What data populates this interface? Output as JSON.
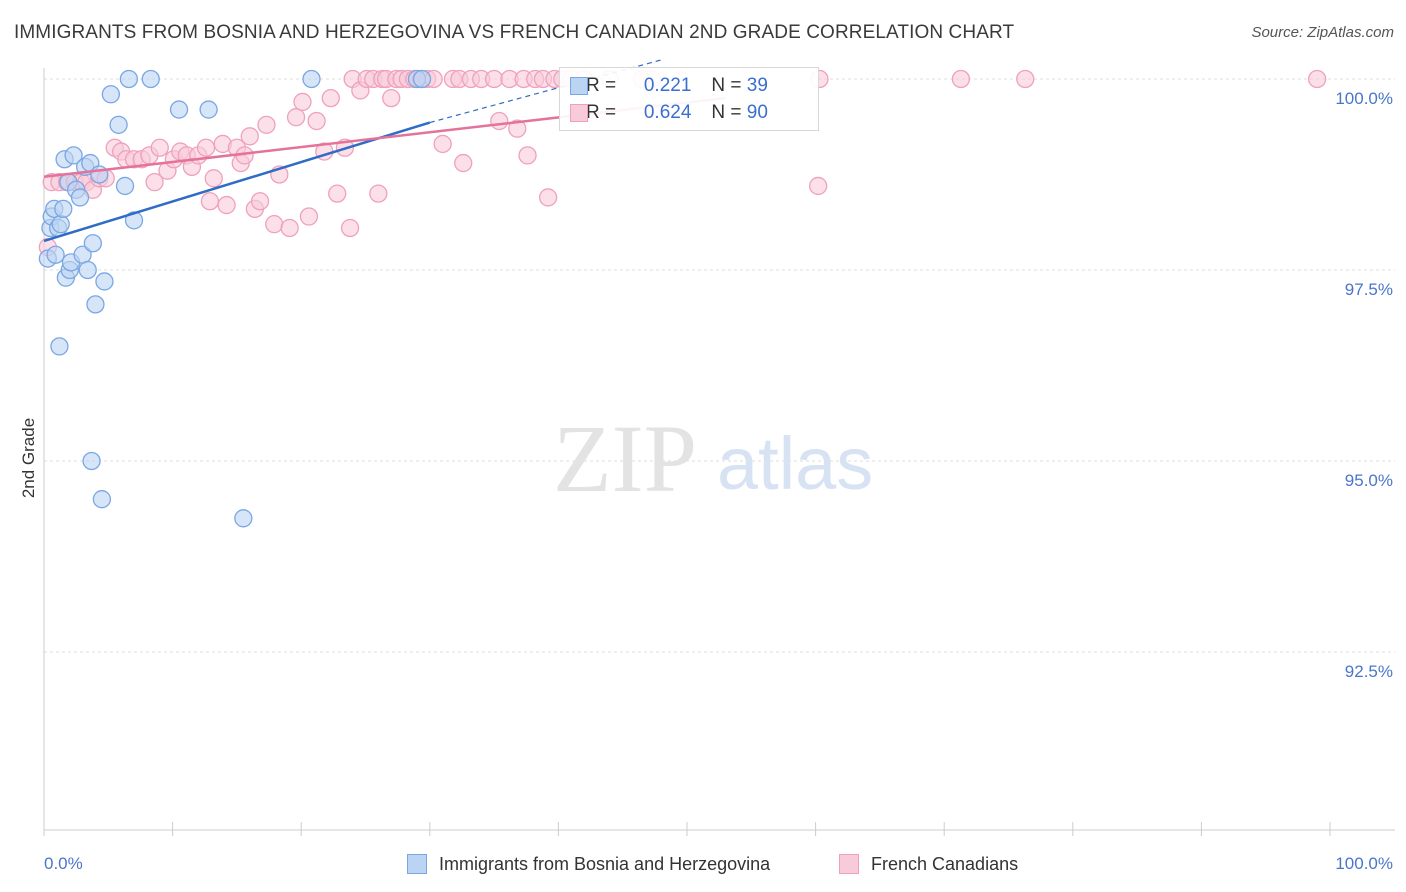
{
  "title": "IMMIGRANTS FROM BOSNIA AND HERZEGOVINA VS FRENCH CANADIAN 2ND GRADE CORRELATION CHART",
  "source": "Source: ZipAtlas.com",
  "watermark": {
    "zip": "ZIP",
    "atlas": "atlas"
  },
  "legend": {
    "rows": [
      {
        "r_label": "R =",
        "r_value": "0.221",
        "n_label": "N =",
        "n_value": "39"
      },
      {
        "r_label": "R =",
        "r_value": "0.624",
        "n_label": "N =",
        "n_value": "90"
      }
    ]
  },
  "chart_data": {
    "type": "scatter",
    "title": "IMMIGRANTS FROM BOSNIA AND HERZEGOVINA VS FRENCH CANADIAN 2ND GRADE CORRELATION CHART",
    "xlabel": "",
    "ylabel": "2nd Grade",
    "xlim": [
      0,
      100
    ],
    "ylim": [
      90.0,
      100.4
    ],
    "x_tick_labels": [
      "0.0%",
      "100.0%"
    ],
    "y_ticks": [
      100.0,
      97.5,
      95.0,
      92.5
    ],
    "y_tick_labels": [
      "100.0%",
      "97.5%",
      "95.0%",
      "92.5%"
    ],
    "grid": true,
    "series": [
      {
        "name": "Immigrants from Bosnia and Herzegovina",
        "color": "#7aa7e3",
        "fill": "#bcd4f4",
        "line_color": "#2f6cc6",
        "trend": {
          "x": [
            0,
            30
          ],
          "y": [
            97.88,
            99.43
          ]
        },
        "trend_extension": {
          "x": [
            30,
            48
          ],
          "y": [
            99.43,
            100.25
          ]
        },
        "points": [
          [
            0.3,
            97.65
          ],
          [
            0.5,
            98.05
          ],
          [
            0.6,
            98.2
          ],
          [
            0.8,
            98.3
          ],
          [
            0.9,
            97.7
          ],
          [
            1.1,
            98.05
          ],
          [
            1.3,
            98.1
          ],
          [
            1.5,
            98.3
          ],
          [
            1.6,
            98.95
          ],
          [
            1.7,
            97.4
          ],
          [
            1.9,
            98.65
          ],
          [
            2.0,
            97.5
          ],
          [
            2.1,
            97.6
          ],
          [
            2.3,
            99.0
          ],
          [
            2.5,
            98.55
          ],
          [
            2.8,
            98.45
          ],
          [
            3.0,
            97.7
          ],
          [
            3.2,
            98.85
          ],
          [
            3.4,
            97.5
          ],
          [
            3.6,
            98.9
          ],
          [
            3.8,
            97.85
          ],
          [
            4.0,
            97.05
          ],
          [
            4.3,
            98.75
          ],
          [
            4.7,
            97.35
          ],
          [
            5.2,
            99.8
          ],
          [
            5.8,
            99.4
          ],
          [
            6.3,
            98.6
          ],
          [
            6.6,
            100.0
          ],
          [
            7.0,
            98.15
          ],
          [
            8.3,
            100.0
          ],
          [
            10.5,
            99.6
          ],
          [
            12.8,
            99.6
          ],
          [
            20.8,
            100.0
          ],
          [
            29.0,
            100.0
          ],
          [
            29.4,
            100.0
          ],
          [
            1.2,
            96.5
          ],
          [
            3.7,
            95.0
          ],
          [
            4.5,
            94.5
          ],
          [
            15.5,
            94.25
          ]
        ]
      },
      {
        "name": "French Canadians",
        "color": "#f0a0bc",
        "fill": "#f8cbda",
        "line_color": "#e4729b",
        "trend": {
          "x": [
            0,
            53
          ],
          "y": [
            98.72,
            99.75
          ]
        },
        "points": [
          [
            0.3,
            97.8
          ],
          [
            0.6,
            98.65
          ],
          [
            1.2,
            98.65
          ],
          [
            1.8,
            98.65
          ],
          [
            2.4,
            98.65
          ],
          [
            2.9,
            98.65
          ],
          [
            3.3,
            98.65
          ],
          [
            3.8,
            98.55
          ],
          [
            4.3,
            98.7
          ],
          [
            4.8,
            98.7
          ],
          [
            5.5,
            99.1
          ],
          [
            6.0,
            99.05
          ],
          [
            6.4,
            98.95
          ],
          [
            7.0,
            98.95
          ],
          [
            7.6,
            98.95
          ],
          [
            8.2,
            99.0
          ],
          [
            8.6,
            98.65
          ],
          [
            9.0,
            99.1
          ],
          [
            9.6,
            98.8
          ],
          [
            10.1,
            98.95
          ],
          [
            10.6,
            99.05
          ],
          [
            11.1,
            99.0
          ],
          [
            11.5,
            98.85
          ],
          [
            12.0,
            99.0
          ],
          [
            12.6,
            99.1
          ],
          [
            12.9,
            98.4
          ],
          [
            13.2,
            98.7
          ],
          [
            13.9,
            99.15
          ],
          [
            14.2,
            98.35
          ],
          [
            15.0,
            99.1
          ],
          [
            15.3,
            98.9
          ],
          [
            15.6,
            99.0
          ],
          [
            16.0,
            99.25
          ],
          [
            16.4,
            98.3
          ],
          [
            16.8,
            98.4
          ],
          [
            17.3,
            99.4
          ],
          [
            17.9,
            98.1
          ],
          [
            18.3,
            98.75
          ],
          [
            19.1,
            98.05
          ],
          [
            19.6,
            99.5
          ],
          [
            20.1,
            99.7
          ],
          [
            20.6,
            98.2
          ],
          [
            21.2,
            99.45
          ],
          [
            21.8,
            99.05
          ],
          [
            22.3,
            99.75
          ],
          [
            22.8,
            98.5
          ],
          [
            23.4,
            99.1
          ],
          [
            23.8,
            98.05
          ],
          [
            24.0,
            100.0
          ],
          [
            24.6,
            99.85
          ],
          [
            25.1,
            100.0
          ],
          [
            25.6,
            100.0
          ],
          [
            26.0,
            98.5
          ],
          [
            26.3,
            100.0
          ],
          [
            26.6,
            100.0
          ],
          [
            27.0,
            99.75
          ],
          [
            27.4,
            100.0
          ],
          [
            27.8,
            100.0
          ],
          [
            28.3,
            100.0
          ],
          [
            28.8,
            100.0
          ],
          [
            29.3,
            100.0
          ],
          [
            29.8,
            100.0
          ],
          [
            30.3,
            100.0
          ],
          [
            31.0,
            99.15
          ],
          [
            31.8,
            100.0
          ],
          [
            32.3,
            100.0
          ],
          [
            32.6,
            98.9
          ],
          [
            33.2,
            100.0
          ],
          [
            34.0,
            100.0
          ],
          [
            35.0,
            100.0
          ],
          [
            35.4,
            99.45
          ],
          [
            36.2,
            100.0
          ],
          [
            36.8,
            99.35
          ],
          [
            37.3,
            100.0
          ],
          [
            37.6,
            99.0
          ],
          [
            38.2,
            100.0
          ],
          [
            38.8,
            100.0
          ],
          [
            39.2,
            98.45
          ],
          [
            39.7,
            100.0
          ],
          [
            40.3,
            100.0
          ],
          [
            41.0,
            100.0
          ],
          [
            42.0,
            100.0
          ],
          [
            44.0,
            100.0
          ],
          [
            46.5,
            100.0
          ],
          [
            47.3,
            100.0
          ],
          [
            60.2,
            98.6
          ],
          [
            60.3,
            100.0
          ],
          [
            71.3,
            100.0
          ],
          [
            76.3,
            100.0
          ],
          [
            99.0,
            100.0
          ]
        ]
      }
    ]
  }
}
